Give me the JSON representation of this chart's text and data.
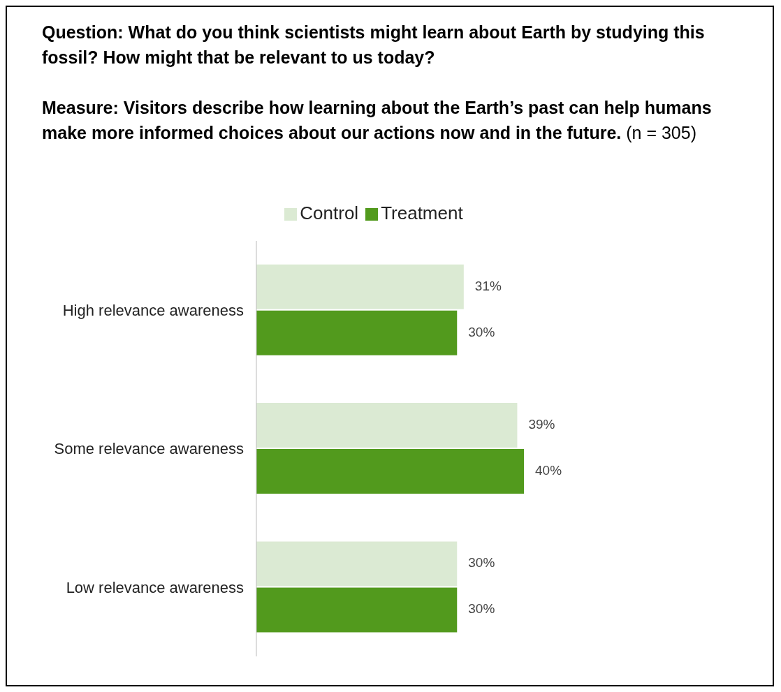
{
  "chart_data": {
    "type": "bar",
    "orientation": "horizontal",
    "title": "Question: What do you think scientists might learn about Earth by studying this fossil?  How might that be relevant to us today?",
    "subtitle": "Measure: Visitors describe how learning about the Earth’s past can help humans make more informed choices about our actions now and in the future.",
    "annotations": [
      "(n = 305)"
    ],
    "categories": [
      "High relevance awareness",
      "Some relevance awareness",
      "Low relevance awareness"
    ],
    "series": [
      {
        "name": "Control",
        "color": "#dbead3",
        "values": [
          31,
          39,
          30
        ],
        "value_labels": [
          "31%",
          "39%",
          "30%"
        ]
      },
      {
        "name": "Treatment",
        "color": "#529a1d",
        "values": [
          30,
          40,
          30
        ],
        "value_labels": [
          "30%",
          "40%",
          "30%"
        ]
      }
    ],
    "legend": "top",
    "grid": false
  }
}
